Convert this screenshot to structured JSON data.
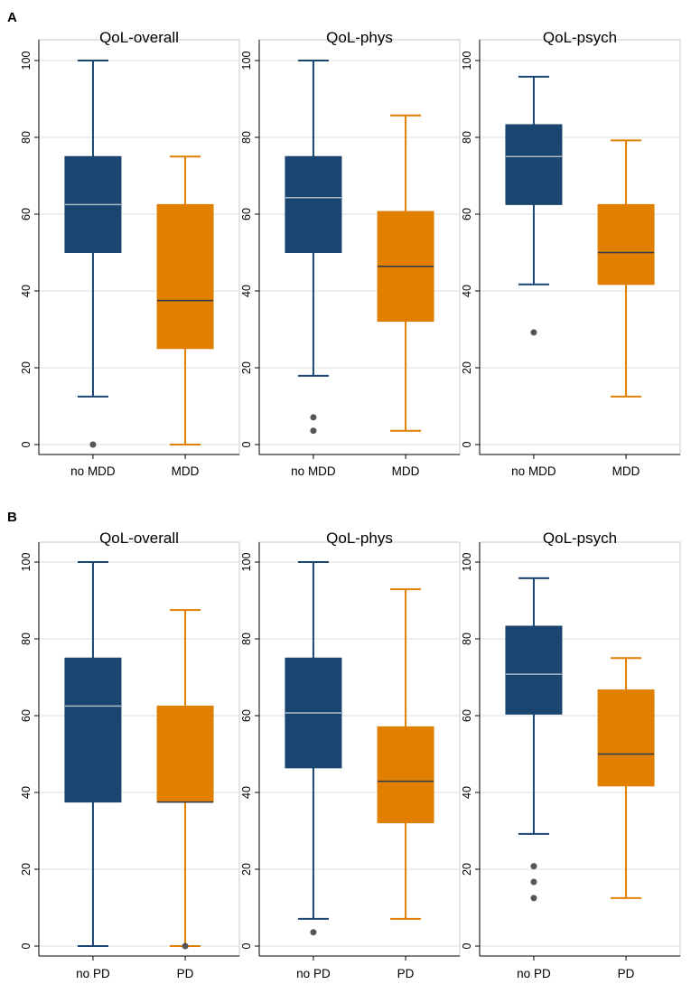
{
  "panels": [
    {
      "letter": "A"
    },
    {
      "letter": "B"
    }
  ],
  "colors": {
    "group1": "#1a4570",
    "group2": "#e07f00",
    "outlier": "#555555",
    "grid": "#dddddd",
    "axis": "#000000",
    "plot_border": "#c8c8c8",
    "median_on_group1": "#a9b8c6",
    "median_on_group2": "#2a3a4a"
  },
  "chart_data": [
    {
      "type": "box",
      "panel": "A",
      "title": "QoL-overall",
      "ylim": [
        0,
        100
      ],
      "yticks": [
        0,
        20,
        40,
        60,
        80,
        100
      ],
      "categories": [
        "no MDD",
        "MDD"
      ],
      "boxes": [
        {
          "category": "no MDD",
          "q1": 50,
          "median": 62.5,
          "q3": 75,
          "whisker_low": 12.5,
          "whisker_high": 100,
          "outliers": [
            0
          ]
        },
        {
          "category": "MDD",
          "q1": 25,
          "median": 37.5,
          "q3": 62.5,
          "whisker_low": 0,
          "whisker_high": 75,
          "outliers": []
        }
      ]
    },
    {
      "type": "box",
      "panel": "A",
      "title": "QoL-phys",
      "ylim": [
        0,
        100
      ],
      "yticks": [
        0,
        20,
        40,
        60,
        80,
        100
      ],
      "categories": [
        "no MDD",
        "MDD"
      ],
      "boxes": [
        {
          "category": "no MDD",
          "q1": 50,
          "median": 64.3,
          "q3": 75,
          "whisker_low": 17.9,
          "whisker_high": 100,
          "outliers": [
            7.1,
            3.6
          ]
        },
        {
          "category": "MDD",
          "q1": 32.1,
          "median": 46.4,
          "q3": 60.7,
          "whisker_low": 3.6,
          "whisker_high": 85.7,
          "outliers": []
        }
      ]
    },
    {
      "type": "box",
      "panel": "A",
      "title": "QoL-psych",
      "ylim": [
        0,
        100
      ],
      "yticks": [
        0,
        20,
        40,
        60,
        80,
        100
      ],
      "categories": [
        "no MDD",
        "MDD"
      ],
      "boxes": [
        {
          "category": "no MDD",
          "q1": 62.5,
          "median": 75,
          "q3": 83.3,
          "whisker_low": 41.7,
          "whisker_high": 95.8,
          "outliers": [
            29.2
          ]
        },
        {
          "category": "MDD",
          "q1": 41.7,
          "median": 50,
          "q3": 62.5,
          "whisker_low": 12.5,
          "whisker_high": 79.2,
          "outliers": []
        }
      ]
    },
    {
      "type": "box",
      "panel": "B",
      "title": "QoL-overall",
      "ylim": [
        0,
        100
      ],
      "yticks": [
        0,
        20,
        40,
        60,
        80,
        100
      ],
      "categories": [
        "no PD",
        "PD"
      ],
      "boxes": [
        {
          "category": "no PD",
          "q1": 37.5,
          "median": 62.5,
          "q3": 75,
          "whisker_low": 0,
          "whisker_high": 100,
          "outliers": []
        },
        {
          "category": "PD",
          "q1": 37.5,
          "median": 37.5,
          "q3": 62.5,
          "whisker_low": 0,
          "whisker_high": 87.5,
          "outliers": [
            0
          ]
        }
      ]
    },
    {
      "type": "box",
      "panel": "B",
      "title": "QoL-phys",
      "ylim": [
        0,
        100
      ],
      "yticks": [
        0,
        20,
        40,
        60,
        80,
        100
      ],
      "categories": [
        "no PD",
        "PD"
      ],
      "boxes": [
        {
          "category": "no PD",
          "q1": 46.4,
          "median": 60.7,
          "q3": 75,
          "whisker_low": 7.1,
          "whisker_high": 100,
          "outliers": [
            3.6
          ]
        },
        {
          "category": "PD",
          "q1": 32.1,
          "median": 42.9,
          "q3": 57.1,
          "whisker_low": 7.1,
          "whisker_high": 92.9,
          "outliers": []
        }
      ]
    },
    {
      "type": "box",
      "panel": "B",
      "title": "QoL-psych",
      "ylim": [
        0,
        100
      ],
      "yticks": [
        0,
        20,
        40,
        60,
        80,
        100
      ],
      "categories": [
        "no PD",
        "PD"
      ],
      "boxes": [
        {
          "category": "no PD",
          "q1": 60.4,
          "median": 70.8,
          "q3": 83.3,
          "whisker_low": 29.2,
          "whisker_high": 95.8,
          "outliers": [
            20.8,
            16.7,
            12.5
          ]
        },
        {
          "category": "PD",
          "q1": 41.7,
          "median": 50,
          "q3": 66.7,
          "whisker_low": 12.5,
          "whisker_high": 75,
          "outliers": []
        }
      ]
    }
  ]
}
